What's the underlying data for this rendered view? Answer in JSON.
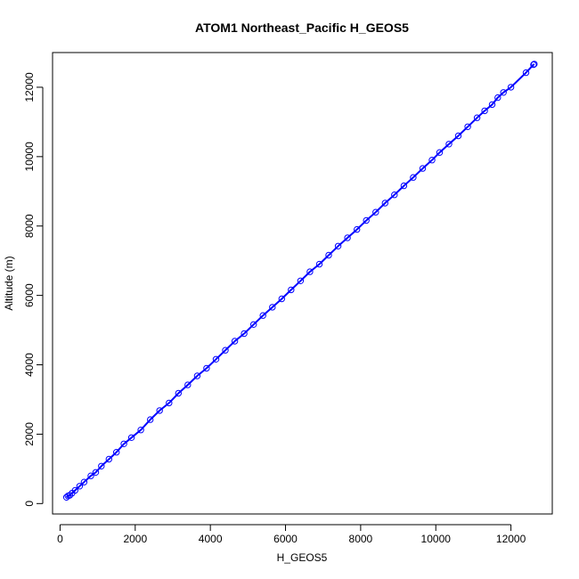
{
  "chart_data": {
    "type": "scatter",
    "title": "ATOM1 Northeast_Pacific H_GEOS5",
    "xlabel": "H_GEOS5",
    "ylabel": "Altitude (m)",
    "xlim": [
      -200,
      13100
    ],
    "ylim": [
      -300,
      13000
    ],
    "xticks": [
      0,
      2000,
      4000,
      6000,
      8000,
      10000,
      12000
    ],
    "yticks": [
      0,
      2000,
      4000,
      6000,
      8000,
      10000,
      12000
    ],
    "grid": false,
    "legend": "none",
    "series": [
      {
        "color": "#0000ff",
        "marker": "open-circle",
        "line": true,
        "points": [
          [
            170,
            180
          ],
          [
            210,
            220
          ],
          [
            260,
            240
          ],
          [
            320,
            300
          ],
          [
            400,
            380
          ],
          [
            520,
            500
          ],
          [
            640,
            620
          ],
          [
            820,
            800
          ],
          [
            950,
            900
          ],
          [
            1100,
            1080
          ],
          [
            1300,
            1280
          ],
          [
            1500,
            1480
          ],
          [
            1700,
            1720
          ],
          [
            1900,
            1900
          ],
          [
            2150,
            2120
          ],
          [
            2400,
            2420
          ],
          [
            2650,
            2680
          ],
          [
            2900,
            2900
          ],
          [
            3150,
            3180
          ],
          [
            3400,
            3420
          ],
          [
            3650,
            3680
          ],
          [
            3900,
            3900
          ],
          [
            4150,
            4160
          ],
          [
            4400,
            4420
          ],
          [
            4650,
            4680
          ],
          [
            4900,
            4900
          ],
          [
            5150,
            5160
          ],
          [
            5400,
            5420
          ],
          [
            5650,
            5660
          ],
          [
            5900,
            5900
          ],
          [
            6150,
            6160
          ],
          [
            6400,
            6420
          ],
          [
            6650,
            6680
          ],
          [
            6900,
            6900
          ],
          [
            7150,
            7160
          ],
          [
            7400,
            7420
          ],
          [
            7650,
            7660
          ],
          [
            7900,
            7900
          ],
          [
            8150,
            8160
          ],
          [
            8400,
            8400
          ],
          [
            8650,
            8660
          ],
          [
            8900,
            8900
          ],
          [
            9150,
            9160
          ],
          [
            9400,
            9400
          ],
          [
            9650,
            9660
          ],
          [
            9900,
            9900
          ],
          [
            10100,
            10120
          ],
          [
            10350,
            10360
          ],
          [
            10600,
            10600
          ],
          [
            10850,
            10860
          ],
          [
            11100,
            11120
          ],
          [
            11300,
            11320
          ],
          [
            11500,
            11500
          ],
          [
            11650,
            11700
          ],
          [
            11800,
            11850
          ],
          [
            12000,
            12000
          ],
          [
            12400,
            12420
          ],
          [
            12600,
            12650
          ],
          [
            12620,
            12670
          ]
        ]
      }
    ]
  }
}
